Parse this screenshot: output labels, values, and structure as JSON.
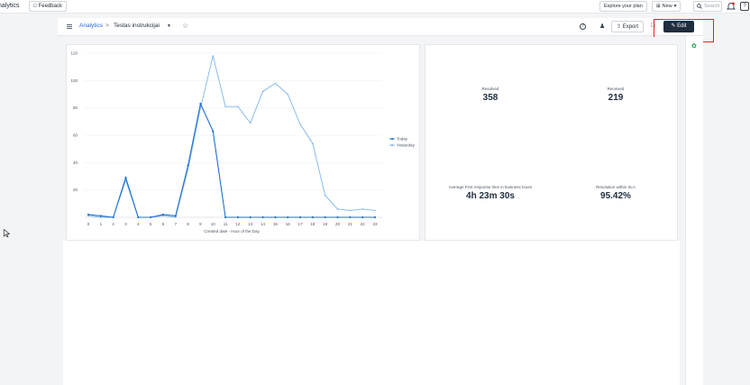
{
  "topbar": {
    "app_title": "nalytics",
    "feedback_label": "Feedback",
    "explore_label": "Explore your plan",
    "new_label": "New",
    "search_placeholder": "Search",
    "help_label": "?"
  },
  "header": {
    "breadcrumb_root": "Analytics",
    "breadcrumb_sep": ">",
    "dashboard_title": "Testas instrukcijai",
    "help_label": "?",
    "export_label": "Export",
    "edit_label": "Edit"
  },
  "metrics": [
    {
      "label": "Resolved",
      "value": "358"
    },
    {
      "label": "Received",
      "value": "219"
    },
    {
      "label": "Average First response time in business hours",
      "value": "4h 23m 30s"
    },
    {
      "label": "Resolution within SLA",
      "value": "95.42%"
    }
  ],
  "colors": {
    "today": "#1f6fd1",
    "yesterday": "#7fb6ea",
    "edit_bg": "#1f2d3d",
    "highlight": "#dc2626"
  },
  "chart_data": {
    "type": "line",
    "xlabel": "Created date - Hour of the Day",
    "ylabel": "",
    "ylim": [
      0,
      120
    ],
    "yticks": [
      20,
      40,
      60,
      80,
      100,
      120
    ],
    "x": [
      0,
      1,
      2,
      3,
      4,
      5,
      6,
      7,
      8,
      9,
      10,
      11,
      12,
      13,
      14,
      15,
      16,
      17,
      18,
      19,
      20,
      21,
      22,
      23
    ],
    "legend_position": "right",
    "series": [
      {
        "name": "Today",
        "values": [
          2,
          1,
          0,
          29,
          0,
          0,
          2,
          1,
          38,
          83,
          63,
          0,
          0,
          0,
          0,
          0,
          0,
          0,
          0,
          0,
          0,
          0,
          0,
          0
        ]
      },
      {
        "name": "Yesterday",
        "values": [
          1,
          0,
          0,
          27,
          0,
          0,
          1,
          0,
          35,
          80,
          118,
          81,
          81,
          69,
          92,
          98,
          90,
          68,
          54,
          16,
          6,
          5,
          6,
          5
        ]
      }
    ]
  }
}
